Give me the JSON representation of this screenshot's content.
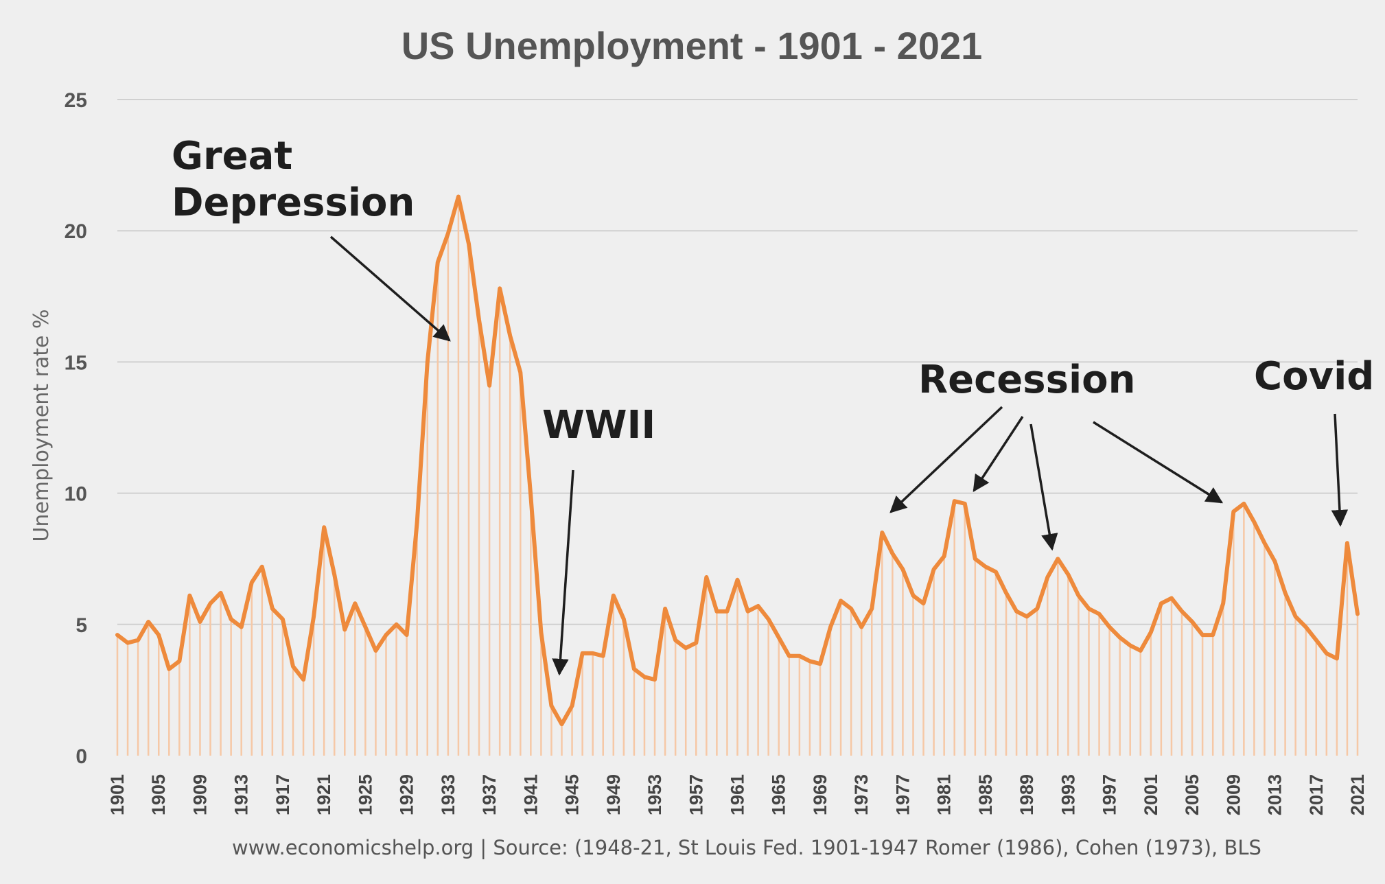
{
  "chart_data": {
    "type": "line",
    "title": "US Unemployment - 1901 - 2021",
    "ylabel": "Unemployment rate %",
    "xlabel": "",
    "ylim": [
      0,
      25
    ],
    "yticks": [
      "0",
      "5",
      "10",
      "15",
      "20",
      "25"
    ],
    "x_tick_labels": [
      "1901",
      "1905",
      "1909",
      "1913",
      "1917",
      "1921",
      "1925",
      "1929",
      "1933",
      "1937",
      "1941",
      "1945",
      "1949",
      "1953",
      "1957",
      "1961",
      "1965",
      "1969",
      "1973",
      "1977",
      "1981",
      "1985",
      "1989",
      "1993",
      "1997",
      "2001",
      "2005",
      "2009",
      "2013",
      "2017",
      "2021"
    ],
    "grid": "horizontal",
    "line_color": "#ee8a3c",
    "fill_color": "#f6c8a6",
    "x": [
      1901,
      1902,
      1903,
      1904,
      1905,
      1906,
      1907,
      1908,
      1909,
      1910,
      1911,
      1912,
      1913,
      1914,
      1915,
      1916,
      1917,
      1918,
      1919,
      1920,
      1921,
      1922,
      1923,
      1924,
      1925,
      1926,
      1927,
      1928,
      1929,
      1930,
      1931,
      1932,
      1933,
      1934,
      1935,
      1936,
      1937,
      1938,
      1939,
      1940,
      1941,
      1942,
      1943,
      1944,
      1945,
      1946,
      1947,
      1948,
      1949,
      1950,
      1951,
      1952,
      1953,
      1954,
      1955,
      1956,
      1957,
      1958,
      1959,
      1960,
      1961,
      1962,
      1963,
      1964,
      1965,
      1966,
      1967,
      1968,
      1969,
      1970,
      1971,
      1972,
      1973,
      1974,
      1975,
      1976,
      1977,
      1978,
      1979,
      1980,
      1981,
      1982,
      1983,
      1984,
      1985,
      1986,
      1987,
      1988,
      1989,
      1990,
      1991,
      1992,
      1993,
      1994,
      1995,
      1996,
      1997,
      1998,
      1999,
      2000,
      2001,
      2002,
      2003,
      2004,
      2005,
      2006,
      2007,
      2008,
      2009,
      2010,
      2011,
      2012,
      2013,
      2014,
      2015,
      2016,
      2017,
      2018,
      2019,
      2020,
      2021
    ],
    "values": [
      4.6,
      4.3,
      4.4,
      5.1,
      4.6,
      3.3,
      3.6,
      6.1,
      5.1,
      5.8,
      6.2,
      5.2,
      4.9,
      6.6,
      7.2,
      5.6,
      5.2,
      3.4,
      2.9,
      5.3,
      8.7,
      6.9,
      4.8,
      5.8,
      4.9,
      4.0,
      4.6,
      5.0,
      4.6,
      8.9,
      15.0,
      18.8,
      19.9,
      21.3,
      19.5,
      16.6,
      14.1,
      17.8,
      16.0,
      14.6,
      9.9,
      4.7,
      1.9,
      1.2,
      1.9,
      3.9,
      3.9,
      3.8,
      6.1,
      5.2,
      3.3,
      3.0,
      2.9,
      5.6,
      4.4,
      4.1,
      4.3,
      6.8,
      5.5,
      5.5,
      6.7,
      5.5,
      5.7,
      5.2,
      4.5,
      3.8,
      3.8,
      3.6,
      3.5,
      4.9,
      5.9,
      5.6,
      4.9,
      5.6,
      8.5,
      7.7,
      7.1,
      6.1,
      5.8,
      7.1,
      7.6,
      9.7,
      9.6,
      7.5,
      7.2,
      7.0,
      6.2,
      5.5,
      5.3,
      5.6,
      6.8,
      7.5,
      6.9,
      6.1,
      5.6,
      5.4,
      4.9,
      4.5,
      4.2,
      4.0,
      4.7,
      5.8,
      6.0,
      5.5,
      5.1,
      4.6,
      4.6,
      5.8,
      9.3,
      9.6,
      8.9,
      8.1,
      7.4,
      6.2,
      5.3,
      4.9,
      4.4,
      3.9,
      3.7,
      8.1,
      5.4
    ]
  },
  "annotations": {
    "great_depression_line1": "Great",
    "great_depression_line2": "Depression",
    "wwii": "WWII",
    "recession": "Recession",
    "covid": "Covid"
  },
  "footer": {
    "source": "www.economicshelp.org  | Source: (1948-21, St Louis Fed. 1901-1947 Romer (1986), Cohen (1973), BLS"
  }
}
